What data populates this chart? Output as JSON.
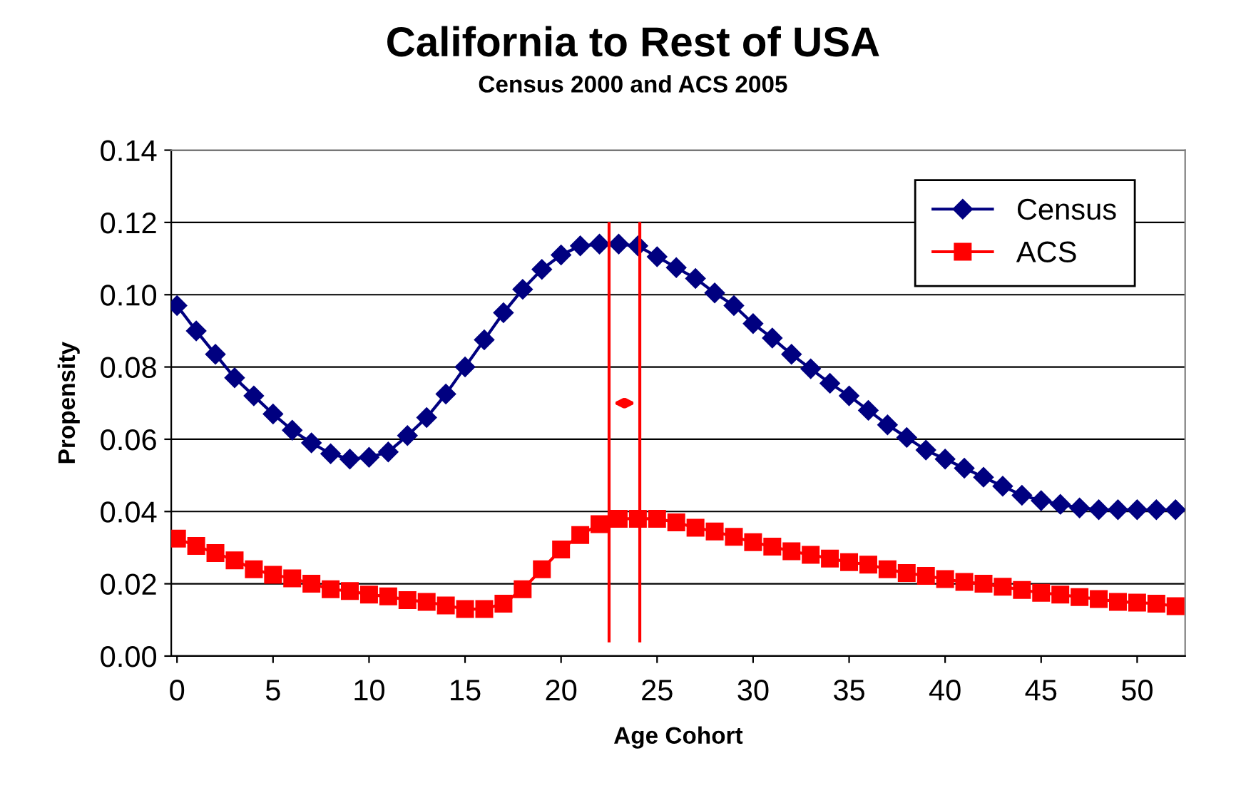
{
  "chart_data": {
    "type": "line",
    "title": "California to Rest of USA",
    "subtitle": "Census 2000 and ACS 2005",
    "xlabel": "Age Cohort",
    "ylabel": "Propensity",
    "x": [
      0,
      1,
      2,
      3,
      4,
      5,
      6,
      7,
      8,
      9,
      10,
      11,
      12,
      13,
      14,
      15,
      16,
      17,
      18,
      19,
      20,
      21,
      22,
      23,
      24,
      25,
      26,
      27,
      28,
      29,
      30,
      31,
      32,
      33,
      34,
      35,
      36,
      37,
      38,
      39,
      40,
      41,
      42,
      43,
      44,
      45,
      46,
      47,
      48,
      49,
      50,
      51,
      52
    ],
    "series": [
      {
        "name": "Census",
        "color": "#000080",
        "marker": "diamond",
        "values": [
          0.097,
          0.09,
          0.0835,
          0.077,
          0.072,
          0.067,
          0.0625,
          0.059,
          0.056,
          0.0545,
          0.055,
          0.0565,
          0.061,
          0.066,
          0.0725,
          0.08,
          0.0875,
          0.095,
          0.1015,
          0.107,
          0.111,
          0.1135,
          0.114,
          0.114,
          0.1135,
          0.1105,
          0.1075,
          0.1045,
          0.1005,
          0.097,
          0.092,
          0.088,
          0.0835,
          0.0795,
          0.0755,
          0.072,
          0.068,
          0.064,
          0.0605,
          0.057,
          0.0545,
          0.052,
          0.0495,
          0.047,
          0.0445,
          0.043,
          0.042,
          0.041,
          0.0405,
          0.0405,
          0.0405,
          0.0405,
          0.0405
        ]
      },
      {
        "name": "ACS",
        "color": "#ff0000",
        "marker": "square",
        "values": [
          0.0325,
          0.0305,
          0.0285,
          0.0265,
          0.024,
          0.0225,
          0.0215,
          0.02,
          0.0185,
          0.018,
          0.017,
          0.0165,
          0.0155,
          0.015,
          0.014,
          0.013,
          0.013,
          0.0145,
          0.0185,
          0.024,
          0.0295,
          0.0335,
          0.0365,
          0.038,
          0.038,
          0.038,
          0.037,
          0.0355,
          0.0345,
          0.033,
          0.0315,
          0.0303,
          0.029,
          0.028,
          0.027,
          0.026,
          0.0253,
          0.024,
          0.023,
          0.0222,
          0.0213,
          0.0205,
          0.02,
          0.0192,
          0.0183,
          0.0175,
          0.017,
          0.0163,
          0.0158,
          0.015,
          0.0148,
          0.0145,
          0.0138
        ]
      }
    ],
    "xlim": [
      -0.3,
      52.5
    ],
    "xticks": [
      0,
      5,
      10,
      15,
      20,
      25,
      30,
      35,
      40,
      45,
      50
    ],
    "ylim": [
      0,
      0.14
    ],
    "yticks": [
      {
        "value": 0,
        "label": "0.00"
      },
      {
        "value": 0.02,
        "label": "0.02"
      },
      {
        "value": 0.04,
        "label": "0.04"
      },
      {
        "value": 0.06,
        "label": "0.06"
      },
      {
        "value": 0.08,
        "label": "0.08"
      },
      {
        "value": 0.1,
        "label": "0.10"
      },
      {
        "value": 0.12,
        "label": "0.12"
      },
      {
        "value": 0.14,
        "label": "0.14"
      }
    ],
    "ref_lines": [
      {
        "axis": "x",
        "value": 22.5,
        "color": "#ff0000"
      },
      {
        "axis": "x",
        "value": 24.1,
        "color": "#ff0000"
      }
    ],
    "grid": "y",
    "legend": "top right",
    "line_style": "solid"
  }
}
